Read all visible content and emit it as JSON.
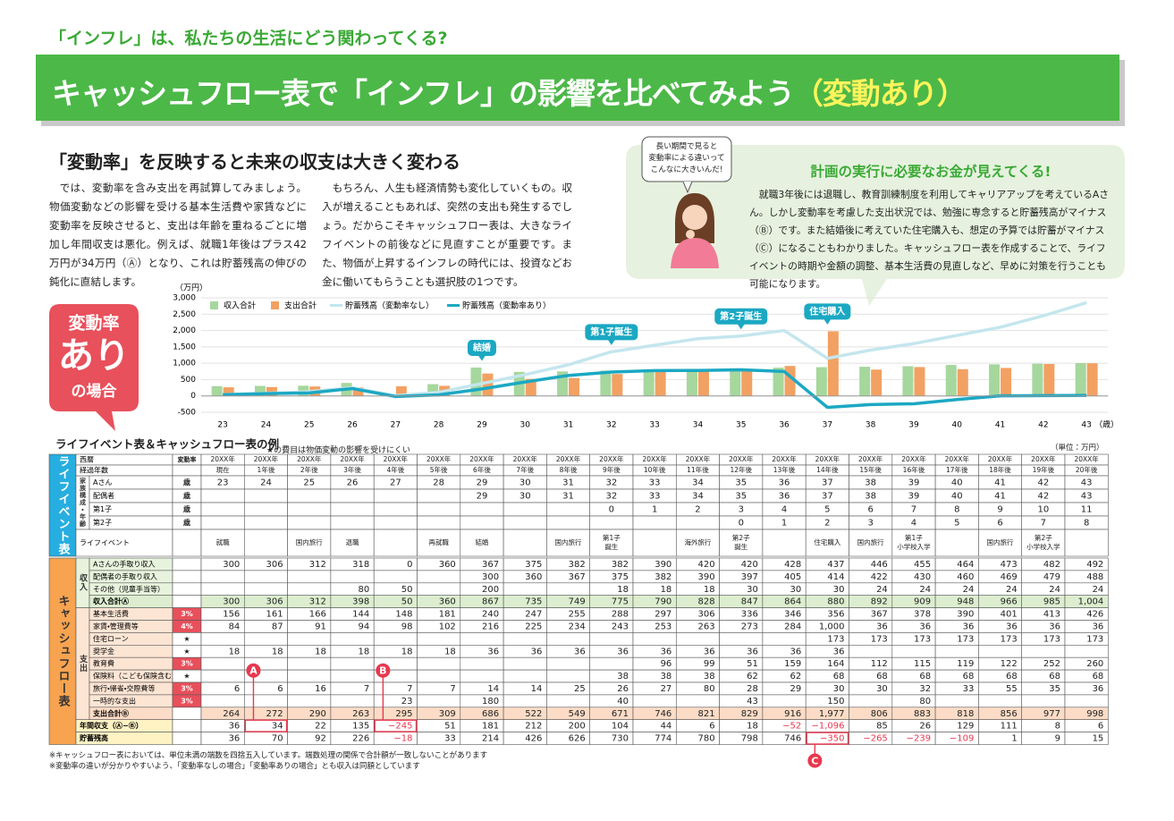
{
  "header": {
    "kicker": "「インフレ」は、私たちの生活にどう関わってくる?",
    "title": "キャッシュフロー表で「インフレ」の影響を比べてみよう",
    "title_suffix": "（変動あり）"
  },
  "intro": {
    "heading": "「変動率」を反映すると未来の収支は大きく変わる",
    "paragraphs": [
      "では、変動率を含み支出を再試算してみましょう。物価変動などの影響を受ける基本生活費や家賃などに変動率を反映させると、支出は年齢を重ねるごとに増加し年間収支は悪化。例えば、就職1年後はプラス42万円が34万円（Ⓐ）となり、これは貯蓄残高の伸びの鈍化に直結します。",
      "もちろん、人生も経済情勢も変化していくもの。収入が増えることもあれば、突然の支出も発生するでしょう。だからこそキャッシュフロー表は、大きなライフイベントの前後などに見直すことが重要です。また、物価が上昇するインフレの時代には、投資などお金に働いてもらうことも選択肢の1つです。"
    ]
  },
  "aside": {
    "speech": [
      "長い期間で見ると",
      "変動率による違いって",
      "こんなに大きいんだ!"
    ],
    "title": "計画の実行に必要なお金が見えてくる!",
    "text": "就職3年後には退職し、教育訓練制度を利用してキャリアアップを考えているAさん。しかし変動率を考慮した支出状況では、勉強に専念すると貯蓄残高がマイナス（Ⓑ）です。また結婚後に考えていた住宅購入も、想定の予算では貯蓄がマイナス（Ⓒ）になることもわかりました。キャッシュフロー表を作成することで、ライフイベントの時期や金額の調整、基本生活費の見直しなど、早めに対策を行うことも可能になります。"
  },
  "badge": [
    "変動率",
    "あり",
    "の場合"
  ],
  "chart_data": {
    "type": "bar",
    "y_unit": "（万円）",
    "x_unit": "（歳）",
    "categories": [
      23,
      24,
      25,
      26,
      27,
      28,
      29,
      30,
      31,
      32,
      33,
      34,
      35,
      36,
      37,
      38,
      39,
      40,
      41,
      42,
      43
    ],
    "ylim": [
      -500,
      3000
    ],
    "yticks": [
      -500,
      0,
      500,
      {
        "value": 1000,
        "label": "1,000"
      },
      {
        "value": 1500,
        "label": "1,500"
      },
      {
        "value": 2000,
        "label": "2,000"
      },
      {
        "value": 2500,
        "label": "2,500"
      },
      {
        "value": 3000,
        "label": "3,000"
      }
    ],
    "grid": true,
    "series": [
      {
        "name": "収入合計",
        "type": "bar",
        "color": "#a6d79d",
        "values": [
          300,
          306,
          312,
          398,
          50,
          360,
          867,
          735,
          749,
          775,
          790,
          828,
          847,
          864,
          880,
          892,
          909,
          948,
          966,
          985,
          1004
        ]
      },
      {
        "name": "支出合計",
        "type": "bar",
        "color": "#f2a163",
        "values": [
          264,
          272,
          290,
          263,
          295,
          309,
          686,
          522,
          549,
          671,
          746,
          821,
          829,
          916,
          1977,
          806,
          883,
          818,
          856,
          977,
          998
        ]
      },
      {
        "name": "貯蓄残高（変動率なし）",
        "type": "line",
        "color": "#c4e6ee",
        "values": [
          40,
          80,
          130,
          250,
          10,
          110,
          380,
          650,
          950,
          1350,
          1550,
          1750,
          1830,
          2000,
          1150,
          1400,
          1600,
          1850,
          2100,
          2450,
          2850
        ]
      },
      {
        "name": "貯蓄残高（変動率あり）",
        "type": "line",
        "color": "#1ba8c3",
        "values": [
          36,
          70,
          92,
          226,
          -18,
          33,
          214,
          426,
          626,
          730,
          774,
          780,
          798,
          746,
          -350,
          -265,
          -239,
          -109,
          1,
          9,
          15
        ]
      }
    ],
    "annotations": [
      {
        "text": "結婚",
        "x": 29
      },
      {
        "text": "第1子誕生",
        "x": 32
      },
      {
        "text": "第2子誕生",
        "x": 35
      },
      {
        "text": "住宅購入",
        "x": 37
      }
    ]
  },
  "table": {
    "title": "ライフイベント表＆キャッシュフロー表の例",
    "note": "★の費目は物価変動の影響を受けにくい",
    "unit": "（単位：万円）",
    "life_section": "ライフイベント表",
    "family_group": "家族構成・年齢",
    "cf_section": "キャッシュフロー表",
    "income_group": "収入",
    "expense_group": "支出",
    "rows": [
      {
        "label": "西暦",
        "rate": "変動率",
        "cells": [
          "20XX年",
          "20XX年",
          "20XX年",
          "20XX年",
          "20XX年",
          "20XX年",
          "20XX年",
          "20XX年",
          "20XX年",
          "20XX年",
          "20XX年",
          "20XX年",
          "20XX年",
          "20XX年",
          "20XX年",
          "20XX年",
          "20XX年",
          "20XX年",
          "20XX年",
          "20XX年",
          "20XX年"
        ]
      },
      {
        "label": "経過年数",
        "rate": null,
        "cells": [
          "現在",
          "1年後",
          "2年後",
          "3年後",
          "4年後",
          "5年後",
          "6年後",
          "7年後",
          "8年後",
          "9年後",
          "10年後",
          "11年後",
          "12年後",
          "13年後",
          "14年後",
          "15年後",
          "16年後",
          "17年後",
          "18年後",
          "19年後",
          "20年後"
        ]
      },
      {
        "label": "Aさん",
        "rate": "歳",
        "cells": [
          "23",
          "24",
          "25",
          "26",
          "27",
          "28",
          "29",
          "30",
          "31",
          "32",
          "33",
          "34",
          "35",
          "36",
          "37",
          "38",
          "39",
          "40",
          "41",
          "42",
          "43"
        ]
      },
      {
        "label": "配偶者",
        "rate": "歳",
        "cells": [
          null,
          null,
          null,
          null,
          null,
          null,
          "29",
          "30",
          "31",
          "32",
          "33",
          "34",
          "35",
          "36",
          "37",
          "38",
          "39",
          "40",
          "41",
          "42",
          "43"
        ]
      },
      {
        "label": "第1子",
        "rate": "歳",
        "cells": [
          null,
          null,
          null,
          null,
          null,
          null,
          null,
          null,
          null,
          "0",
          "1",
          "2",
          "3",
          "4",
          "5",
          "6",
          "7",
          "8",
          "9",
          "10",
          "11"
        ]
      },
      {
        "label": "第2子",
        "rate": "歳",
        "cells": [
          null,
          null,
          null,
          null,
          null,
          null,
          null,
          null,
          null,
          null,
          null,
          null,
          "0",
          "1",
          "2",
          "3",
          "4",
          "5",
          "6",
          "7",
          "8"
        ]
      },
      {
        "label": "ライフイベント",
        "rate": null,
        "cells": [
          "就職",
          null,
          "国内旅行",
          "退職",
          null,
          "再就職",
          "結婚",
          null,
          "国内旅行",
          "第1子誕生",
          null,
          "海外旅行",
          "第2子誕生",
          null,
          "住宅購入",
          "国内旅行",
          "第1子小学校入学",
          null,
          "国内旅行",
          "第2子小学校入学",
          null
        ]
      },
      {
        "label": "Aさんの手取り収入",
        "rate": null,
        "cells": [
          "300",
          "306",
          "312",
          "318",
          "0",
          "360",
          "367",
          "375",
          "382",
          "382",
          "390",
          "420",
          "420",
          "428",
          "437",
          "446",
          "455",
          "464",
          "473",
          "482",
          "492"
        ]
      },
      {
        "label": "配偶者の手取り収入",
        "rate": null,
        "cells": [
          null,
          null,
          null,
          null,
          null,
          null,
          "300",
          "360",
          "367",
          "375",
          "382",
          "390",
          "397",
          "405",
          "414",
          "422",
          "430",
          "460",
          "469",
          "479",
          "488"
        ]
      },
      {
        "label": "その他（児童手当等）",
        "rate": null,
        "cells": [
          null,
          null,
          null,
          "80",
          "50",
          null,
          "200",
          null,
          null,
          "18",
          "18",
          "18",
          "30",
          "30",
          "30",
          "24",
          "24",
          "24",
          "24",
          "24",
          "24"
        ]
      },
      {
        "label": "収入合計Ⓐ",
        "rate": null,
        "cells": [
          "300",
          "306",
          "312",
          "398",
          "50",
          "360",
          "867",
          "735",
          "749",
          "775",
          "790",
          "828",
          "847",
          "864",
          "880",
          "892",
          "909",
          "948",
          "966",
          "985",
          "1,004"
        ]
      },
      {
        "label": "基本生活費",
        "rate": "3%",
        "cells": [
          "156",
          "161",
          "166",
          "144",
          "148",
          "181",
          "240",
          "247",
          "255",
          "288",
          "297",
          "306",
          "336",
          "346",
          "356",
          "367",
          "378",
          "390",
          "401",
          "413",
          "426"
        ]
      },
      {
        "label": "家賃・管理費等",
        "rate": "4%",
        "cells": [
          "84",
          "87",
          "91",
          "94",
          "98",
          "102",
          "216",
          "225",
          "234",
          "243",
          "253",
          "263",
          "273",
          "284",
          "1,000",
          "36",
          "36",
          "36",
          "36",
          "36",
          "36"
        ]
      },
      {
        "label": "住宅ローン",
        "rate": "★",
        "cells": [
          null,
          null,
          null,
          null,
          null,
          null,
          null,
          null,
          null,
          null,
          null,
          null,
          null,
          null,
          "173",
          "173",
          "173",
          "173",
          "173",
          "173",
          "173"
        ]
      },
      {
        "label": "奨学金",
        "rate": "★",
        "cells": [
          "18",
          "18",
          "18",
          "18",
          "18",
          "18",
          "36",
          "36",
          "36",
          "36",
          "36",
          "36",
          "36",
          "36",
          "36",
          null,
          null,
          null,
          null,
          null,
          null
        ]
      },
      {
        "label": "教育費",
        "rate": "3%",
        "cells": [
          null,
          null,
          null,
          null,
          null,
          null,
          null,
          null,
          null,
          null,
          "96",
          "99",
          "51",
          "159",
          "164",
          "112",
          "115",
          "119",
          "122",
          "252",
          "260"
        ]
      },
      {
        "label": "保険料（こども保険含む）",
        "rate": "★",
        "cells": [
          null,
          null,
          null,
          null,
          null,
          null,
          null,
          null,
          null,
          "38",
          "38",
          "38",
          "62",
          "62",
          "68",
          "68",
          "68",
          "68",
          "68",
          "68",
          "68"
        ]
      },
      {
        "label": "旅行・帰省・交際費等",
        "rate": "3%",
        "cells": [
          "6",
          "6",
          "16",
          "7",
          "7",
          "7",
          "14",
          "14",
          "25",
          "26",
          "27",
          "80",
          "28",
          "29",
          "30",
          "30",
          "32",
          "33",
          "55",
          "35",
          "36"
        ]
      },
      {
        "label": "一時的な支出",
        "rate": "3%",
        "cells": [
          null,
          null,
          null,
          null,
          "23",
          null,
          "180",
          null,
          null,
          "40",
          null,
          null,
          "43",
          null,
          "150",
          null,
          "80",
          null,
          null,
          null,
          null
        ]
      },
      {
        "label": "支出合計Ⓑ",
        "rate": null,
        "cells": [
          "264",
          "272",
          "290",
          "263",
          "295",
          "309",
          "686",
          "522",
          "549",
          "671",
          "746",
          "821",
          "829",
          "916",
          "1,977",
          "806",
          "883",
          "818",
          "856",
          "977",
          "998"
        ]
      },
      {
        "label": "年間収支（Ⓐ−Ⓑ）",
        "rate": null,
        "cells": [
          "36",
          "34",
          "22",
          "135",
          "−245",
          "51",
          "181",
          "212",
          "200",
          "104",
          "44",
          "6",
          "18",
          "−52",
          "−1,096",
          "85",
          "26",
          "129",
          "111",
          "8",
          "6"
        ]
      },
      {
        "label": "貯蓄残高",
        "rate": null,
        "cells": [
          "36",
          "70",
          "92",
          "226",
          "−18",
          "33",
          "214",
          "426",
          "626",
          "730",
          "774",
          "780",
          "798",
          "746",
          "−350",
          "−265",
          "−239",
          "−109",
          "1",
          "9",
          "15"
        ]
      }
    ]
  },
  "callouts": [
    "A",
    "B",
    "C"
  ],
  "footnotes": [
    "※キャッシュフロー表においては、単位未満の端数を四捨五入しています。端数処理の関係で合計額が一致しないことがあります",
    "※変動率の違いが分かりやすいよう、「変動率なしの場合」「変動率ありの場合」とも収入は同額としています"
  ]
}
